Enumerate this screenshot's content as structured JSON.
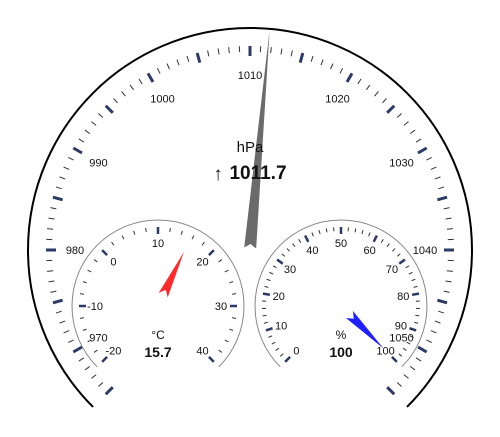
{
  "barometer": {
    "unit": "hPa",
    "value": 1011.7,
    "value_text": "1011.7",
    "trend_icon": "arrow-up-icon",
    "trend_symbol": "↑",
    "scale_min": 965,
    "scale_max": 1055,
    "labels": [
      970,
      980,
      990,
      1000,
      1010,
      1020,
      1030,
      1040,
      1050
    ],
    "needle_color": "#6b6b6b"
  },
  "thermometer": {
    "unit": "°C",
    "value": 15.7,
    "value_text": "15.7",
    "scale_min": -20,
    "scale_max": 40,
    "labels": [
      -20,
      -10,
      0,
      10,
      20,
      30,
      40
    ],
    "needle_color": "#ff2a2a"
  },
  "hygrometer": {
    "unit": "%",
    "value": 100,
    "value_text": "100",
    "scale_min": 0,
    "scale_max": 100,
    "labels": [
      0,
      10,
      20,
      30,
      40,
      50,
      60,
      70,
      80,
      90,
      100
    ],
    "needle_color": "#2020ff"
  },
  "colors": {
    "major_tick": "#2b3a66",
    "minor_tick": "#333333",
    "dial_outline": "#000000",
    "small_dial_outline": "#888888"
  }
}
